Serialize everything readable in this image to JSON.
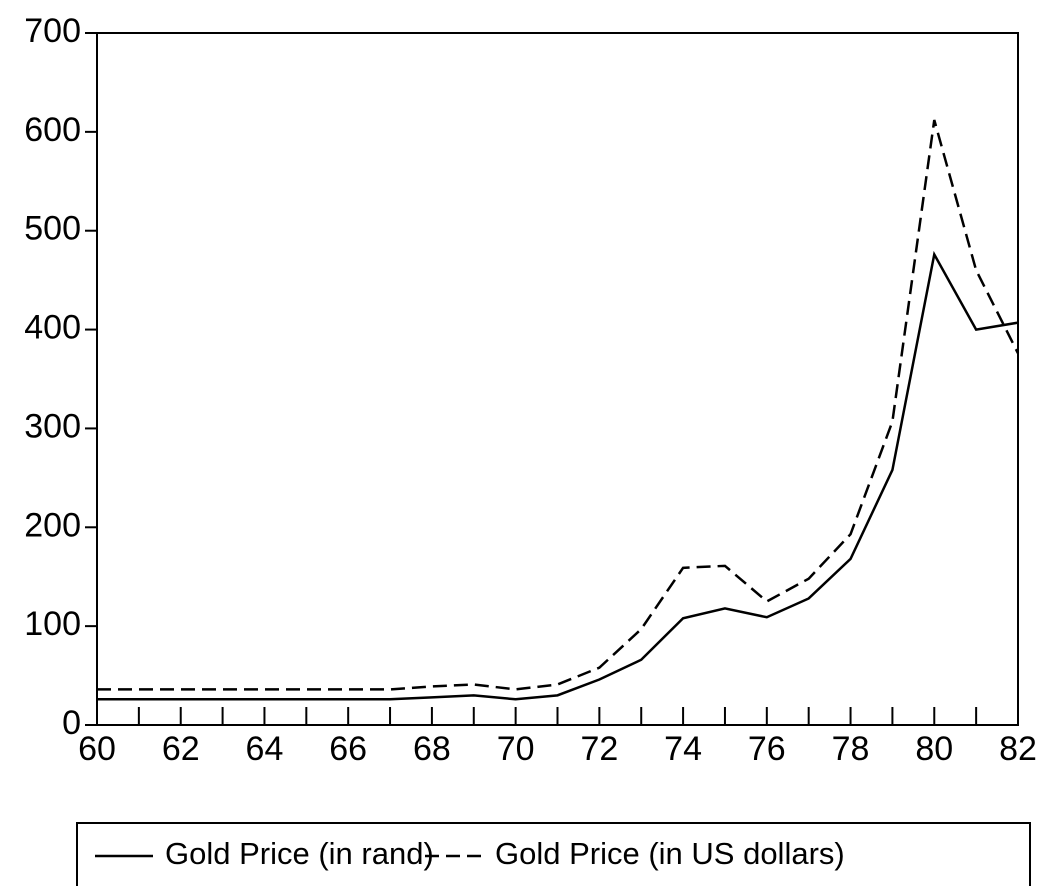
{
  "chart_data": {
    "type": "line",
    "x": [
      60,
      61,
      62,
      63,
      64,
      65,
      66,
      67,
      68,
      69,
      70,
      71,
      72,
      73,
      74,
      75,
      76,
      77,
      78,
      79,
      80,
      81,
      82
    ],
    "series": [
      {
        "name": "Gold Price (in rand)",
        "color": "#000000",
        "dash": "solid",
        "values": [
          26,
          26,
          26,
          26,
          26,
          26,
          26,
          26,
          28,
          30,
          26,
          30,
          46,
          66,
          108,
          118,
          109,
          128,
          168,
          258,
          476,
          400,
          407
        ]
      },
      {
        "name": "Gold Price (in US dollars)",
        "color": "#000000",
        "dash": "dashed",
        "values": [
          36,
          36,
          36,
          36,
          36,
          36,
          36,
          36,
          39,
          41,
          36,
          41,
          58,
          97,
          159,
          161,
          125,
          148,
          193,
          307,
          612,
          460,
          376
        ]
      }
    ],
    "xlim": [
      60,
      82
    ],
    "xticks": [
      60,
      62,
      64,
      66,
      68,
      70,
      72,
      74,
      76,
      78,
      80,
      82
    ],
    "xminorticks": [
      61,
      63,
      65,
      67,
      69,
      71,
      73,
      75,
      77,
      79,
      81
    ],
    "ylim": [
      0,
      700
    ],
    "yticks": [
      0,
      100,
      200,
      300,
      400,
      500,
      600,
      700
    ],
    "grid": false,
    "legend": "bottom"
  }
}
